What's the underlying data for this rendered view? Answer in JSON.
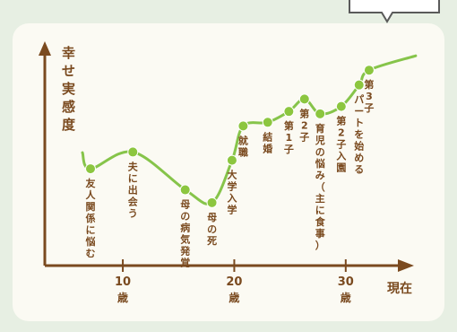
{
  "chart_data": {
    "type": "line",
    "title": "",
    "ylabel": "幸せ実感度",
    "xlabel": "現在",
    "x_ticks": [
      {
        "value": 10,
        "label": "10",
        "unit": "歳"
      },
      {
        "value": 20,
        "label": "20",
        "unit": "歳"
      },
      {
        "value": 30,
        "label": "30",
        "unit": "歳"
      }
    ],
    "xlim": [
      3,
      35
    ],
    "ylim": [
      0,
      10
    ],
    "grid": false,
    "colors": {
      "line": "#86c44a",
      "point": "#8cc63f",
      "axis": "#7a4a1f",
      "label": "#7a4a1f",
      "panel": "#fbfaf3"
    },
    "points": [
      {
        "x": 7.1,
        "y": 4.46,
        "label": "友人関係に悩む"
      },
      {
        "x": 10.9,
        "y": 5.23,
        "label": "夫に出会う"
      },
      {
        "x": 15.6,
        "y": 3.49,
        "label": "母の病気発覚"
      },
      {
        "x": 18.0,
        "y": 2.9,
        "label": "母の死"
      },
      {
        "x": 19.8,
        "y": 4.85,
        "label": "大学入学"
      },
      {
        "x": 20.8,
        "y": 6.43,
        "label": "就職"
      },
      {
        "x": 23.0,
        "y": 6.6,
        "label": "結婚"
      },
      {
        "x": 24.9,
        "y": 7.1,
        "label": "第1子"
      },
      {
        "x": 26.3,
        "y": 7.67,
        "label": "第2子"
      },
      {
        "x": 27.7,
        "y": 6.99,
        "label": "育児の悩み（主に食事）"
      },
      {
        "x": 29.6,
        "y": 7.33,
        "label": "第2子入園"
      },
      {
        "x": 31.2,
        "y": 8.32,
        "label": "パートを始める"
      },
      {
        "x": 32.1,
        "y": 9.0,
        "label": "第3子"
      }
    ]
  }
}
